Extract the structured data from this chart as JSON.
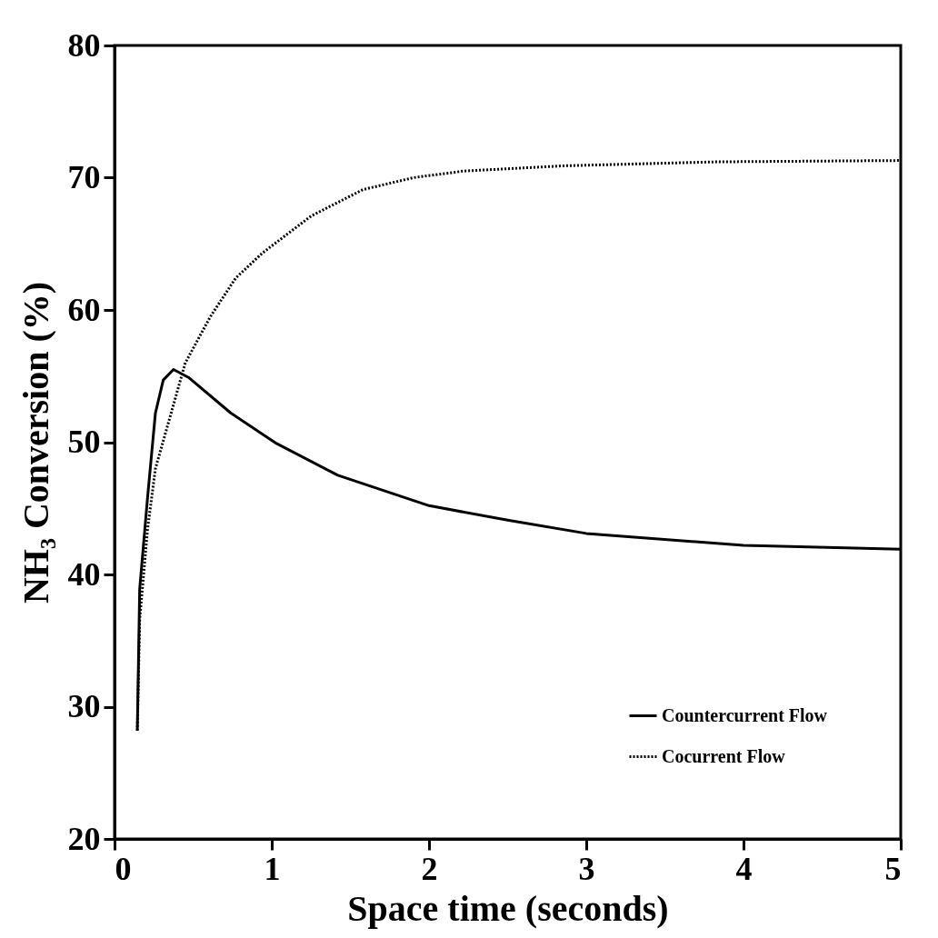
{
  "chart_data": {
    "type": "line",
    "xlabel": "Space time (seconds)",
    "ylabel": "NH₃ Conversion (%)",
    "xlim": [
      0,
      5
    ],
    "ylim": [
      20,
      80
    ],
    "xticks": [
      0,
      1,
      2,
      3,
      4,
      5
    ],
    "yticks": [
      20,
      30,
      40,
      50,
      60,
      70,
      80
    ],
    "grid": false,
    "legend": "bottom right",
    "marker": "none",
    "series": [
      {
        "name": "Countercurrent Flow",
        "color": "#000000",
        "line_style": "solid",
        "x": [
          0.145,
          0.16,
          0.21,
          0.26,
          0.31,
          0.375,
          0.47,
          0.74,
          1.03,
          1.42,
          2,
          2.5,
          3,
          4,
          5
        ],
        "values": [
          28.2,
          38.9,
          45.8,
          52.2,
          54.7,
          55.5,
          54.9,
          52.2,
          49.9,
          47.5,
          45.2,
          44.1,
          43.1,
          42.2,
          41.9
        ]
      },
      {
        "name": "Cocurrent Flow",
        "color": "#000000",
        "line_style": "dotted",
        "x": [
          0.145,
          0.16,
          0.21,
          0.26,
          0.36,
          0.45,
          0.61,
          0.77,
          0.94,
          1.25,
          1.58,
          1.9,
          2.22,
          2.86,
          3.83,
          5
        ],
        "values": [
          28.2,
          36.6,
          43.4,
          48,
          52.2,
          56,
          59.5,
          62.4,
          64.3,
          67.1,
          69.1,
          70,
          70.5,
          70.9,
          71.2,
          71.3
        ]
      }
    ]
  }
}
